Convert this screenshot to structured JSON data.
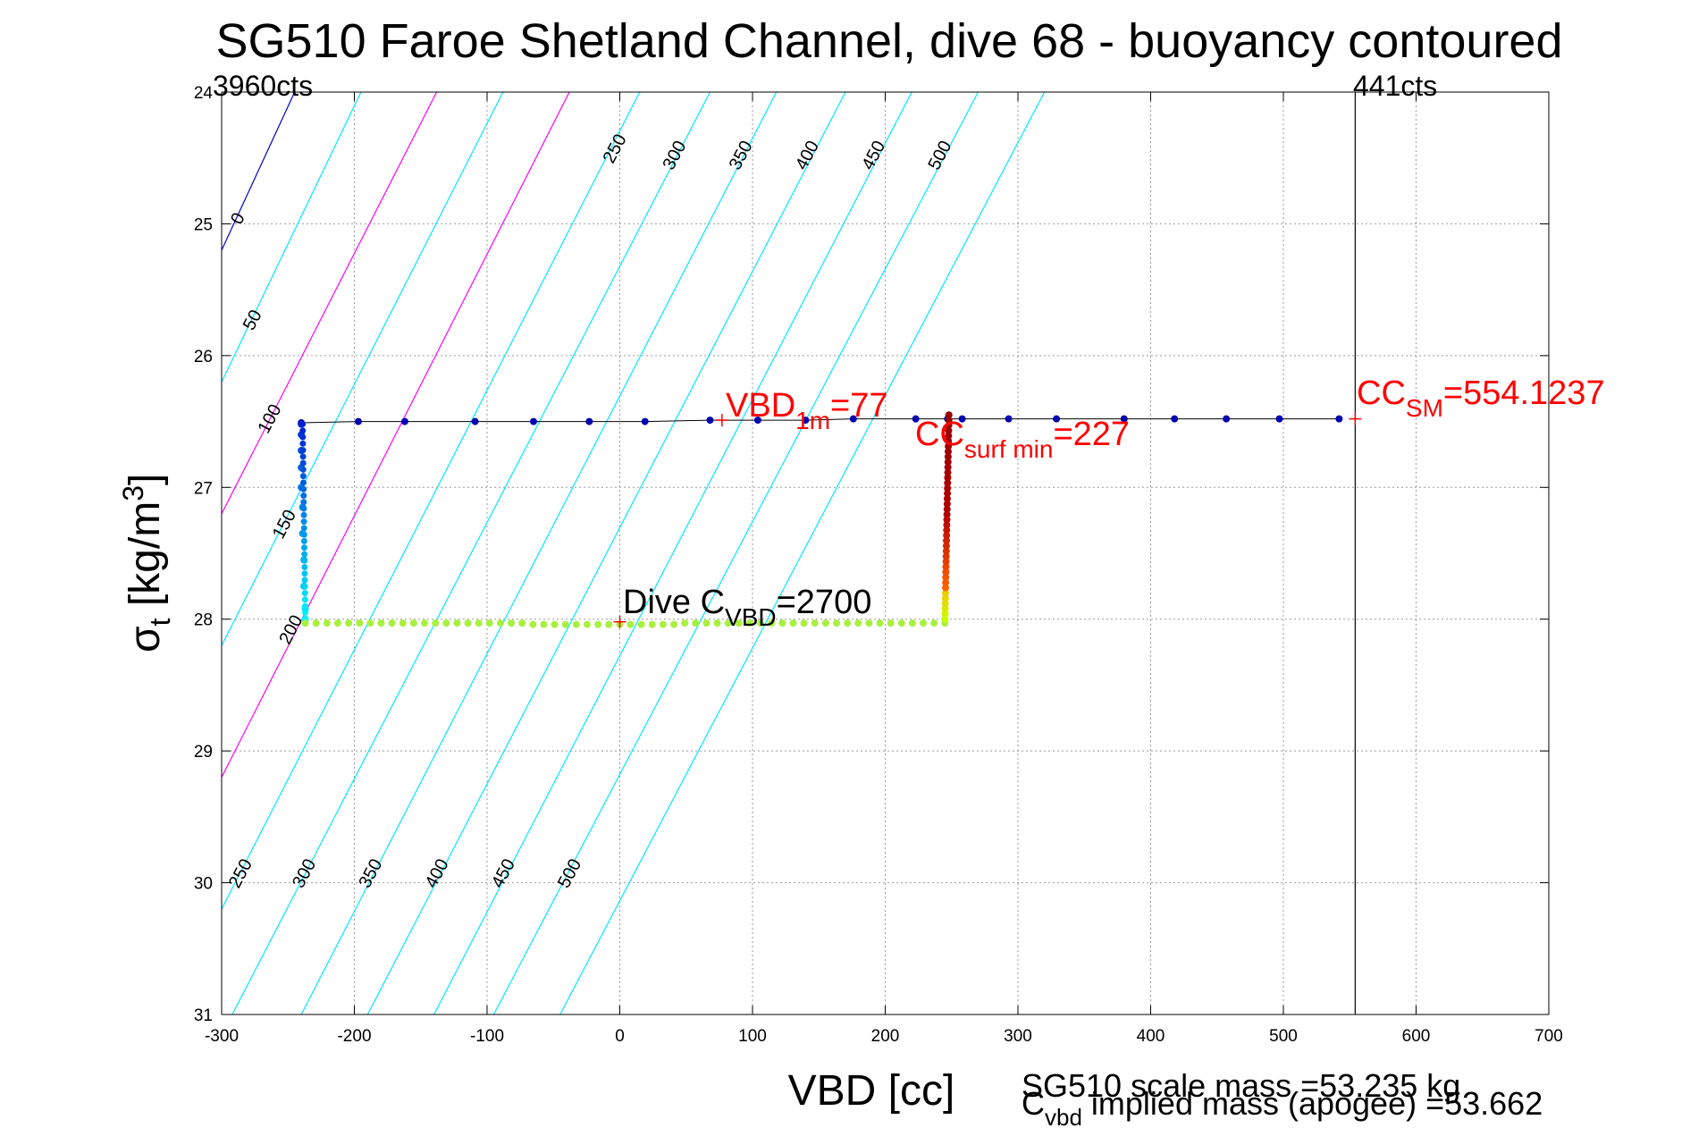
{
  "chart_data": {
    "type": "scatter",
    "title": "SG510 Faroe Shetland Channel, dive 68 - buoyancy contoured",
    "xlabel": "VBD [cc]",
    "ylabel_main": "σ",
    "ylabel_sub": "t",
    "ylabel_rest": " [kg/m",
    "ylabel_sup": "3",
    "ylabel_close": "]",
    "xlim": [
      -300,
      700
    ],
    "ylim": [
      24,
      31
    ],
    "y_reversed": true,
    "grid": true,
    "xticks": [
      -300,
      -200,
      -100,
      0,
      100,
      200,
      300,
      400,
      500,
      600,
      700
    ],
    "yticks": [
      24,
      25,
      26,
      27,
      28,
      29,
      30,
      31
    ],
    "colors": {
      "contour_0": "#0000cc",
      "contour_cyan": "#00e8ff",
      "contour_magenta": "#ff00ff",
      "annotation_red": "#ff0000",
      "path": "#000000"
    },
    "corner_labels": {
      "left": "3960cts",
      "right": "441cts"
    },
    "vlines": [
      {
        "x": 554.1237,
        "label": "441cts"
      }
    ],
    "contours": [
      {
        "level": 0,
        "color": "blue",
        "x_at_24": -300,
        "x_at_31": -300,
        "y_points": [
          [
            -300,
            25.2
          ],
          [
            -245,
            24
          ]
        ]
      },
      {
        "level": 50,
        "color": "cyan"
      },
      {
        "level": 100,
        "color": "magenta"
      },
      {
        "level": 150,
        "color": "cyan"
      },
      {
        "level": 200,
        "color": "magenta"
      },
      {
        "level": 250,
        "color": "cyan"
      },
      {
        "level": 300,
        "color": "cyan"
      },
      {
        "level": 350,
        "color": "cyan"
      },
      {
        "level": 400,
        "color": "cyan"
      },
      {
        "level": 450,
        "color": "cyan"
      },
      {
        "level": 500,
        "color": "cyan"
      }
    ],
    "contour_lines": [
      {
        "x1": -300,
        "y1": 25.2,
        "x2": -245,
        "y2": 24,
        "color": "#0000cc"
      },
      {
        "x1": -300,
        "y1": 26.2,
        "x2": -195,
        "y2": 24,
        "color": "#00e8ff"
      },
      {
        "x1": -300,
        "y1": 27.2,
        "x2": -138,
        "y2": 24,
        "color": "#ff00ff"
      },
      {
        "x1": -300,
        "y1": 28.2,
        "x2": -88,
        "y2": 24,
        "color": "#00e8ff"
      },
      {
        "x1": -300,
        "y1": 29.2,
        "x2": -38,
        "y2": 24,
        "color": "#ff00ff"
      },
      {
        "x1": -300,
        "y1": 30.2,
        "x2": 15,
        "y2": 24,
        "color": "#00e8ff"
      },
      {
        "x1": -292,
        "y1": 31,
        "x2": 68,
        "y2": 24,
        "color": "#00e8ff"
      },
      {
        "x1": -240,
        "y1": 31,
        "x2": 118,
        "y2": 24,
        "color": "#00e8ff"
      },
      {
        "x1": -190,
        "y1": 31,
        "x2": 170,
        "y2": 24,
        "color": "#00e8ff"
      },
      {
        "x1": -140,
        "y1": 31,
        "x2": 220,
        "y2": 24,
        "color": "#00e8ff"
      },
      {
        "x1": -95,
        "y1": 31,
        "x2": 270,
        "y2": 24,
        "color": "#00e8ff"
      },
      {
        "x1": -45,
        "y1": 31,
        "x2": 320,
        "y2": 24,
        "color": "#00e8ff"
      }
    ],
    "contour_labels": [
      {
        "text": "0",
        "x": -284,
        "y": 24.98
      },
      {
        "text": "50",
        "x": -273,
        "y": 25.75
      },
      {
        "text": "100",
        "x": -260,
        "y": 26.5
      },
      {
        "text": "150",
        "x": -249,
        "y": 27.3
      },
      {
        "text": "200",
        "x": -244,
        "y": 28.1
      },
      {
        "text": "250",
        "x": 0,
        "y": 24.45
      },
      {
        "text": "300",
        "x": 45,
        "y": 24.5
      },
      {
        "text": "350",
        "x": 95,
        "y": 24.5
      },
      {
        "text": "400",
        "x": 145,
        "y": 24.5
      },
      {
        "text": "450",
        "x": 195,
        "y": 24.5
      },
      {
        "text": "500",
        "x": 245,
        "y": 24.5
      },
      {
        "text": "250",
        "x": -282,
        "y": 29.95
      },
      {
        "text": "300",
        "x": -234,
        "y": 29.95
      },
      {
        "text": "350",
        "x": -184,
        "y": 29.95
      },
      {
        "text": "400",
        "x": -134,
        "y": 29.95
      },
      {
        "text": "450",
        "x": -84,
        "y": 29.95
      },
      {
        "text": "500",
        "x": -34,
        "y": 29.95
      }
    ],
    "surface_series": {
      "name": "",
      "x": [
        -240,
        -197,
        -162,
        -109,
        -65,
        -23,
        19,
        68,
        104,
        140,
        176,
        223,
        247,
        258,
        293,
        329,
        380,
        418,
        457,
        497,
        542
      ],
      "y": [
        26.51,
        26.5,
        26.5,
        26.5,
        26.5,
        26.5,
        26.5,
        26.49,
        26.49,
        26.49,
        26.48,
        26.48,
        26.48,
        26.48,
        26.48,
        26.48,
        26.48,
        26.48,
        26.48,
        26.48,
        26.48
      ]
    },
    "descent_series": {
      "x": [
        -240,
        -240,
        -240,
        -240,
        -240,
        -239,
        -239,
        -238,
        -238,
        -237,
        -237
      ],
      "y": [
        26.52,
        26.6,
        26.72,
        26.85,
        27.0,
        27.15,
        27.35,
        27.55,
        27.75,
        27.92,
        28.0
      ]
    },
    "deep_series": {
      "x_start": -237,
      "x_end": 245,
      "y": 28.03,
      "count": 60
    },
    "ascent_series": {
      "x": [
        245,
        246,
        247,
        247,
        247,
        247,
        248,
        248,
        248,
        248,
        248,
        248
      ],
      "y": [
        28.0,
        27.85,
        27.65,
        27.45,
        27.3,
        27.15,
        27.0,
        26.9,
        26.8,
        26.65,
        26.55,
        26.45
      ]
    },
    "markers": [
      {
        "x": 77,
        "y": 26.49,
        "color": "red"
      },
      {
        "x": 0,
        "y": 28.02,
        "color": "red"
      },
      {
        "x": 554.1237,
        "y": 26.48,
        "color": "red"
      }
    ],
    "annotations": {
      "vbd_1m": {
        "main": "VBD",
        "sub": "1m",
        "rest": "=77"
      },
      "cc_surf": {
        "main": "CC",
        "sub": "surf min",
        "rest": "=227"
      },
      "cc_sm": {
        "main": "CC",
        "sub": "SM",
        "rest": "=554.1237"
      },
      "dive_c": {
        "main": "Dive C",
        "sub": "VBD",
        "rest": "=2700"
      },
      "scale_mass": "SG510 scale mass =53.235 kg",
      "implied_main": "C",
      "implied_sub": "vbd",
      "implied_rest": " implied mass (apogee) =53.662"
    }
  }
}
